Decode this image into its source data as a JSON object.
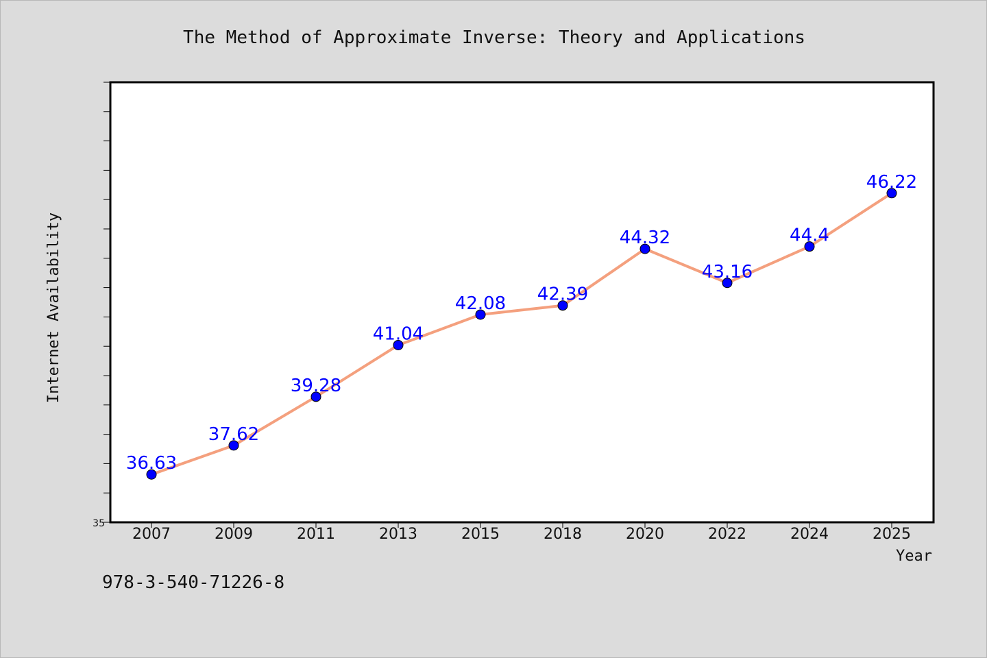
{
  "chart_data": {
    "type": "line",
    "title": "The Method of Approximate Inverse: Theory and Applications",
    "xlabel": "Year",
    "ylabel": "Internet Availability",
    "categories": [
      "2007",
      "2009",
      "2011",
      "2013",
      "2015",
      "2018",
      "2020",
      "2022",
      "2024",
      "2025"
    ],
    "series": [
      {
        "values": [
          36.63,
          37.62,
          39.28,
          41.04,
          42.08,
          42.39,
          44.32,
          43.16,
          44.4,
          46.22
        ]
      }
    ],
    "data_labels": [
      "36.63",
      "37.62",
      "39.28",
      "41.04",
      "42.08",
      "42.39",
      "44.32",
      "43.16",
      "44.4",
      "46.22"
    ],
    "ylim": [
      35,
      50
    ],
    "ytick_labels": [
      "35"
    ],
    "grid": false,
    "legend": "none",
    "colors": {
      "line": "#f4a07e",
      "marker": "#0000ff",
      "label": "#0000ff",
      "plot_background": "#ffffff",
      "page_background": "#dcdcdc"
    }
  },
  "footer": {
    "isbn": "978-3-540-71226-8"
  }
}
